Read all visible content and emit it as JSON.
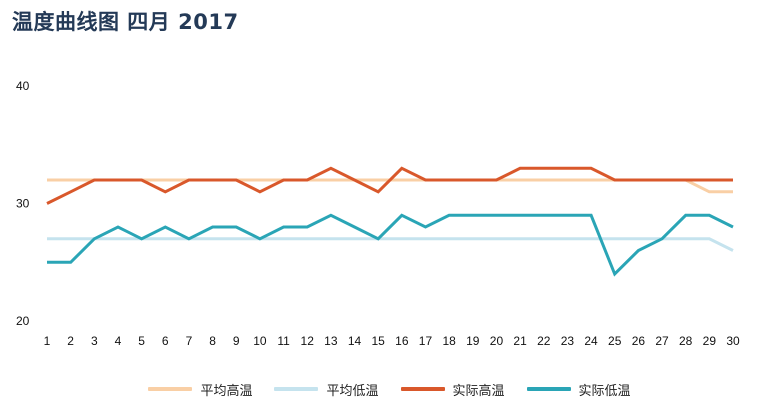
{
  "title": "温度曲线图 四月 2017",
  "chart_data": {
    "type": "line",
    "x": [
      1,
      2,
      3,
      4,
      5,
      6,
      7,
      8,
      9,
      10,
      11,
      12,
      13,
      14,
      15,
      16,
      17,
      18,
      19,
      20,
      21,
      22,
      23,
      24,
      25,
      26,
      27,
      28,
      29,
      30
    ],
    "ylim": [
      20,
      40
    ],
    "yticks": [
      20,
      30,
      40
    ],
    "grid": false,
    "legend_position": "bottom-center",
    "series": [
      {
        "name": "平均高温",
        "color": "#f9cfa5",
        "values": [
          32,
          32,
          32,
          32,
          32,
          32,
          32,
          32,
          32,
          32,
          32,
          32,
          32,
          32,
          32,
          32,
          32,
          32,
          32,
          32,
          32,
          32,
          32,
          32,
          32,
          32,
          32,
          32,
          31,
          31
        ]
      },
      {
        "name": "平均低温",
        "color": "#c5e3ee",
        "values": [
          27,
          27,
          27,
          27,
          27,
          27,
          27,
          27,
          27,
          27,
          27,
          27,
          27,
          27,
          27,
          27,
          27,
          27,
          27,
          27,
          27,
          27,
          27,
          27,
          27,
          27,
          27,
          27,
          27,
          26
        ]
      },
      {
        "name": "实际高温",
        "color": "#d9582b",
        "values": [
          30,
          31,
          32,
          32,
          32,
          31,
          32,
          32,
          32,
          31,
          32,
          32,
          33,
          32,
          31,
          33,
          32,
          32,
          32,
          32,
          33,
          33,
          33,
          33,
          32,
          32,
          32,
          32,
          32,
          32
        ]
      },
      {
        "name": "实际低温",
        "color": "#2aa5b6",
        "values": [
          25,
          25,
          27,
          28,
          27,
          28,
          27,
          28,
          28,
          27,
          28,
          28,
          29,
          28,
          27,
          29,
          28,
          29,
          29,
          29,
          29,
          29,
          29,
          29,
          24,
          26,
          27,
          29,
          29,
          28
        ]
      }
    ]
  }
}
